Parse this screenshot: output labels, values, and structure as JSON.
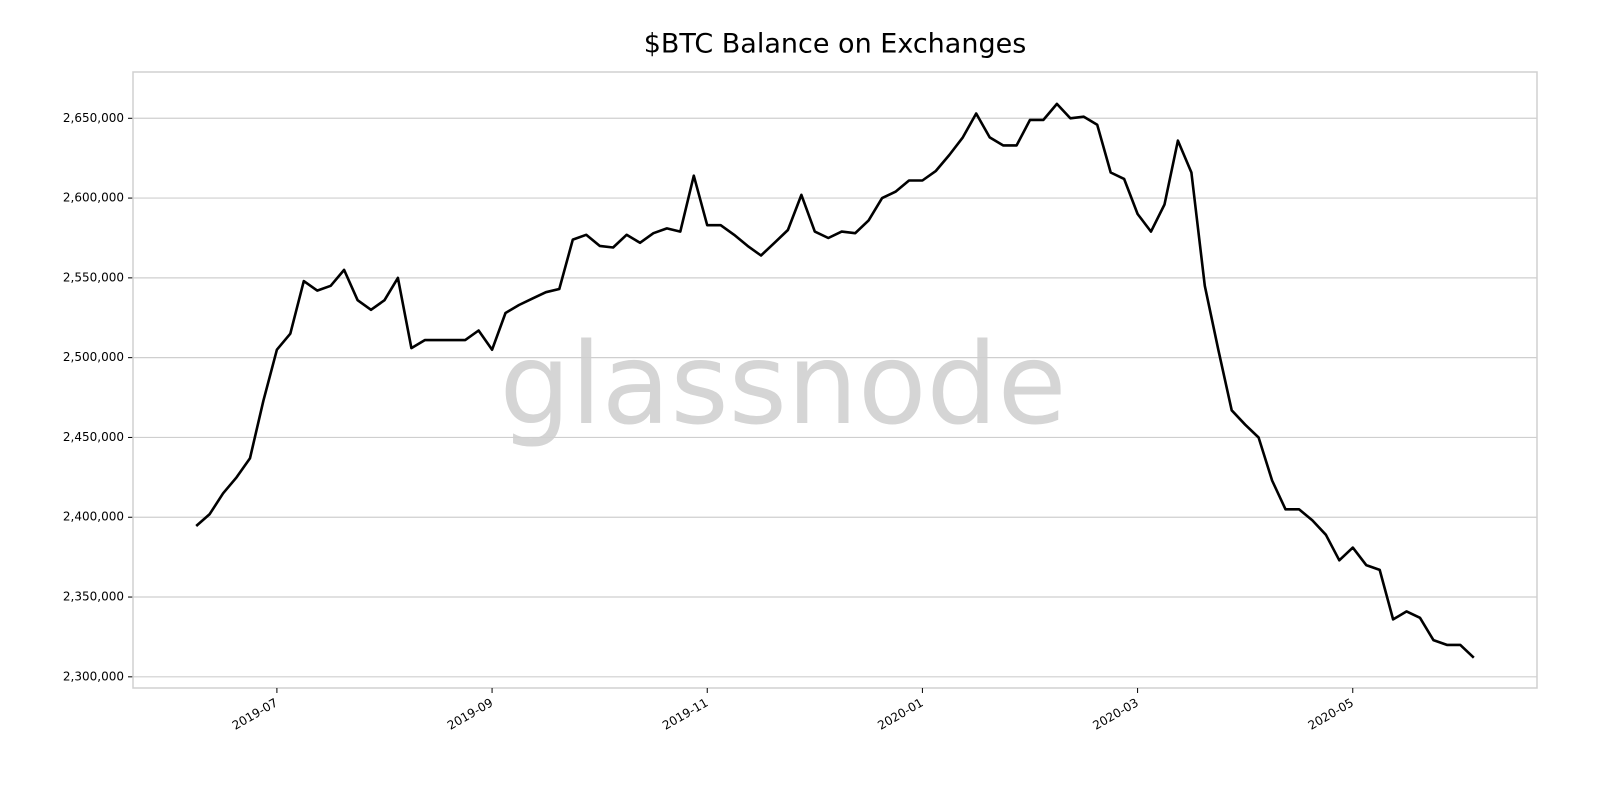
{
  "chart_data": {
    "type": "line",
    "title": "$BTC Balance on Exchanges",
    "watermark": "glassnode",
    "categories": [
      null,
      null,
      null,
      null,
      null,
      null,
      "2019-07",
      null,
      null,
      null,
      null,
      null,
      null,
      null,
      null,
      null,
      null,
      null,
      null,
      null,
      null,
      null,
      "2019-09",
      null,
      null,
      null,
      null,
      null,
      null,
      null,
      null,
      null,
      null,
      null,
      null,
      null,
      null,
      null,
      "2019-11",
      null,
      null,
      null,
      null,
      null,
      null,
      null,
      null,
      null,
      null,
      null,
      null,
      null,
      null,
      null,
      "2020-01",
      null,
      null,
      null,
      null,
      null,
      null,
      null,
      null,
      null,
      null,
      null,
      null,
      null,
      null,
      null,
      "2020-03",
      null,
      null,
      null,
      null,
      null,
      null,
      null,
      null,
      null,
      null,
      null,
      null,
      null,
      null,
      null,
      "2020-05",
      null,
      null,
      null,
      null,
      null,
      null,
      null,
      null,
      null
    ],
    "series": [
      {
        "color": "#000000",
        "values": [
          2394500,
          2402000,
          2415000,
          2425000,
          2437000,
          2473000,
          2505000,
          2515000,
          2548000,
          2542000,
          2545000,
          2555000,
          2536000,
          2530000,
          2536000,
          2550000,
          2506000,
          2511000,
          2511000,
          2511000,
          2511000,
          2517000,
          2505000,
          2528000,
          2533000,
          2537000,
          2541000,
          2543000,
          2574000,
          2577000,
          2570000,
          2569000,
          2577000,
          2572000,
          2578000,
          2581000,
          2579000,
          2614000,
          2583000,
          2583000,
          2577000,
          2570000,
          2564000,
          2572000,
          2580000,
          2602000,
          2579000,
          2575000,
          2579000,
          2578000,
          2586000,
          2600000,
          2604000,
          2611000,
          2611000,
          2617000,
          2627000,
          2638000,
          2653000,
          2638000,
          2633000,
          2633000,
          2649000,
          2649000,
          2659000,
          2650000,
          2651000,
          2646000,
          2616000,
          2612000,
          2590000,
          2579000,
          2596000,
          2636000,
          2616000,
          2545000,
          2505000,
          2467000,
          2458000,
          2450000,
          2423000,
          2405000,
          2405000,
          2398000,
          2389000,
          2373000,
          2381000,
          2370000,
          2367000,
          2336000,
          2341000,
          2337000,
          2323000,
          2320000,
          2320000,
          2312000
        ]
      }
    ],
    "ylim": [
      2293000,
      2679000
    ],
    "yticks": [
      {
        "value": 2300000,
        "label": "2,300,000"
      },
      {
        "value": 2350000,
        "label": "2,350,000"
      },
      {
        "value": 2400000,
        "label": "2,400,000"
      },
      {
        "value": 2450000,
        "label": "2,450,000"
      },
      {
        "value": 2500000,
        "label": "2,500,000"
      },
      {
        "value": 2550000,
        "label": "2,550,000"
      },
      {
        "value": 2600000,
        "label": "2,600,000"
      },
      {
        "value": 2650000,
        "label": "2,650,000"
      }
    ],
    "grid": true
  }
}
